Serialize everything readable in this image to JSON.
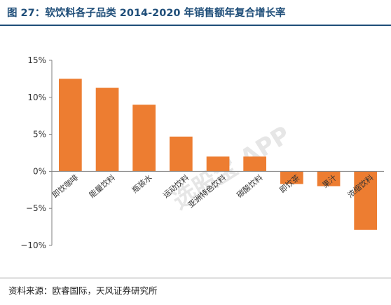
{
  "title": "图 27：软饮料各子品类 2014-2020 年销售额年复合增长率",
  "source": "资料来源：欧睿国际，天风证券研究所",
  "watermark": "选股宝 APP",
  "colors": {
    "bar": "#ED7D31",
    "title": "#1F4E79",
    "axis": "#7f7f7f"
  },
  "chart_data": {
    "type": "bar",
    "categories": [
      "即饮咖啡",
      "能量饮料",
      "瓶装水",
      "运动饮料",
      "亚洲特色饮料",
      "碳酸饮料",
      "即饮茶",
      "果汁",
      "浓缩饮料"
    ],
    "values": [
      12.5,
      11.3,
      9.0,
      4.7,
      2.0,
      2.0,
      -1.7,
      -2.0,
      -7.9
    ],
    "y_ticks": [
      "15%",
      "10%",
      "5%",
      "0%",
      "−5%",
      "−10%"
    ],
    "y_tick_values": [
      15,
      10,
      5,
      0,
      -5,
      -10
    ],
    "ylim": [
      -10,
      15
    ],
    "grid": false
  }
}
